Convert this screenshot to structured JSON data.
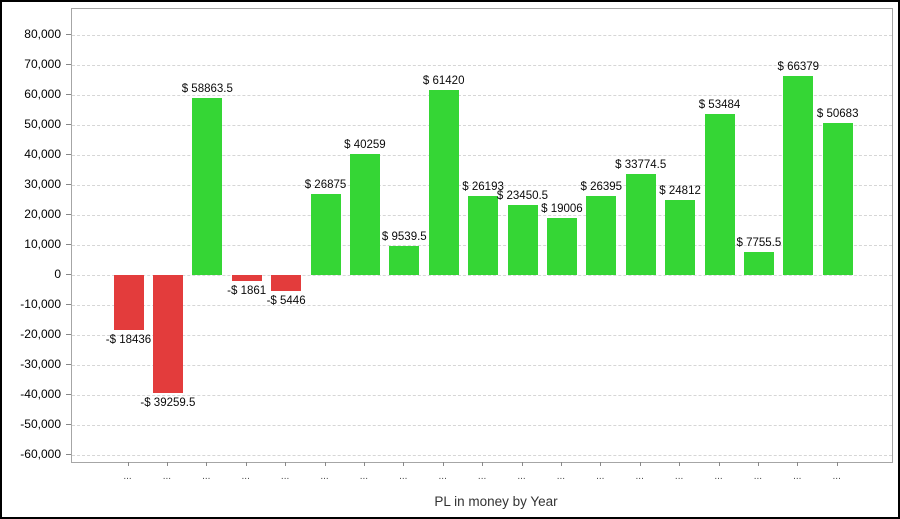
{
  "chart_data": {
    "type": "bar",
    "title": "PL in money by Year",
    "xlabel": "PL in money by Year",
    "ylabel": "",
    "categories": [
      "...",
      "...",
      "...",
      "...",
      "...",
      "...",
      "...",
      "...",
      "...",
      "...",
      "...",
      "...",
      "...",
      "...",
      "...",
      "...",
      "...",
      "...",
      "..."
    ],
    "values": [
      -18436,
      -39259.5,
      58863.5,
      -1861,
      -5446,
      26875,
      40259,
      9539.5,
      61420,
      26193,
      23450.5,
      19006,
      26395,
      33774.5,
      24812,
      53484,
      7755.5,
      66379,
      50683
    ],
    "bar_labels": [
      "-$ 18436",
      "-$ 39259.5",
      "$ 58863.5",
      "-$ 1861",
      "-$ 5446",
      "$ 26875",
      "$ 40259",
      "$ 9539.5",
      "$ 61420",
      "$ 26193",
      "$ 23450.5",
      "$ 19006",
      "$ 26395",
      "$ 33774.5",
      "$ 24812",
      "$ 53484",
      "$ 7755.5",
      "$ 66379",
      "$ 50683"
    ],
    "positive_color": "#35d635",
    "negative_color": "#e33c3c",
    "y_ticks": [
      {
        "value": 80000,
        "label": "80,000"
      },
      {
        "value": 70000,
        "label": "70,000"
      },
      {
        "value": 60000,
        "label": "60,000"
      },
      {
        "value": 50000,
        "label": "50,000"
      },
      {
        "value": 40000,
        "label": "40,000"
      },
      {
        "value": 30000,
        "label": "30,000"
      },
      {
        "value": 20000,
        "label": "20,000"
      },
      {
        "value": 10000,
        "label": "10,000"
      },
      {
        "value": 0,
        "label": "0"
      },
      {
        "value": -10000,
        "label": "-10,000"
      },
      {
        "value": -20000,
        "label": "-20,000"
      },
      {
        "value": -30000,
        "label": "-30,000"
      },
      {
        "value": -40000,
        "label": "-40,000"
      },
      {
        "value": -50000,
        "label": "-50,000"
      },
      {
        "value": -60000,
        "label": "-60,000"
      }
    ],
    "ylim": [
      -62300,
      88500
    ],
    "grid": "horizontal-dashed",
    "legend": "none"
  }
}
